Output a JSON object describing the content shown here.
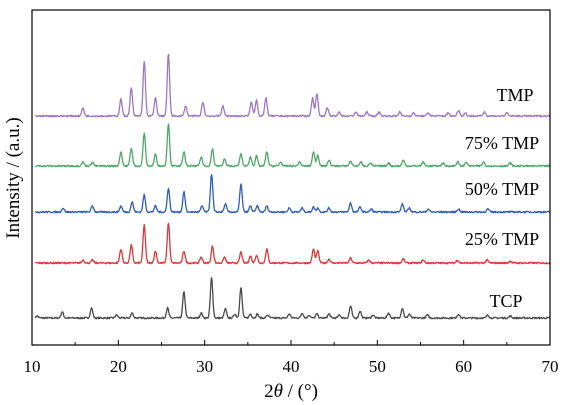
{
  "chart_data": {
    "type": "line",
    "xlabel_prefix": "2",
    "xlabel_var": "θ",
    "xlabel_suffix": " / (°)",
    "ylabel": "Intensity / (a.u.)",
    "xlim": [
      10,
      70
    ],
    "xticks": [
      10,
      20,
      30,
      40,
      50,
      60,
      70
    ],
    "y_ticks_shown": false,
    "grid": false,
    "series": [
      {
        "name": "TCP",
        "color": "#4a4a4a",
        "peaks": [
          [
            10.6,
            2
          ],
          [
            13.5,
            6
          ],
          [
            16.9,
            10
          ],
          [
            19.8,
            3
          ],
          [
            21.6,
            5
          ],
          [
            25.7,
            10
          ],
          [
            27.6,
            26
          ],
          [
            29.6,
            5
          ],
          [
            30.8,
            40
          ],
          [
            32.4,
            9
          ],
          [
            33.5,
            4
          ],
          [
            34.2,
            30
          ],
          [
            35.3,
            4
          ],
          [
            36.1,
            4
          ],
          [
            37.3,
            3
          ],
          [
            39.8,
            4
          ],
          [
            41.3,
            5
          ],
          [
            42.1,
            3
          ],
          [
            43.0,
            4
          ],
          [
            44.4,
            4
          ],
          [
            45.6,
            3
          ],
          [
            46.9,
            12
          ],
          [
            48.0,
            7
          ],
          [
            49.5,
            3
          ],
          [
            51.3,
            5
          ],
          [
            52.9,
            10
          ],
          [
            53.7,
            4
          ],
          [
            55.8,
            3
          ],
          [
            59.4,
            4
          ],
          [
            62.8,
            3
          ],
          [
            65.4,
            2
          ]
        ]
      },
      {
        "name": "25% TMP",
        "color": "#d83838",
        "peaks": [
          [
            15.9,
            3
          ],
          [
            17.0,
            3
          ],
          [
            20.3,
            14
          ],
          [
            21.5,
            18
          ],
          [
            23.0,
            38
          ],
          [
            24.3,
            12
          ],
          [
            25.8,
            40
          ],
          [
            27.6,
            12
          ],
          [
            29.6,
            6
          ],
          [
            30.9,
            17
          ],
          [
            32.3,
            6
          ],
          [
            34.2,
            11
          ],
          [
            35.3,
            7
          ],
          [
            36.0,
            8
          ],
          [
            37.2,
            14
          ],
          [
            42.6,
            14
          ],
          [
            43.1,
            12
          ],
          [
            44.4,
            4
          ],
          [
            46.9,
            5
          ],
          [
            49.0,
            3
          ],
          [
            53.0,
            4
          ],
          [
            55.3,
            3
          ],
          [
            59.3,
            3
          ],
          [
            62.7,
            3
          ],
          [
            65.4,
            2
          ]
        ]
      },
      {
        "name": "50% TMP",
        "color": "#2f5db8",
        "peaks": [
          [
            13.6,
            4
          ],
          [
            17.0,
            6
          ],
          [
            20.3,
            6
          ],
          [
            21.6,
            10
          ],
          [
            23.0,
            17
          ],
          [
            24.3,
            6
          ],
          [
            25.8,
            24
          ],
          [
            27.6,
            20
          ],
          [
            29.7,
            6
          ],
          [
            30.8,
            38
          ],
          [
            32.4,
            8
          ],
          [
            34.2,
            28
          ],
          [
            35.3,
            6
          ],
          [
            36.1,
            6
          ],
          [
            37.2,
            6
          ],
          [
            39.8,
            4
          ],
          [
            41.3,
            4
          ],
          [
            42.6,
            5
          ],
          [
            43.1,
            4
          ],
          [
            44.4,
            4
          ],
          [
            46.9,
            9
          ],
          [
            48.0,
            5
          ],
          [
            49.3,
            3
          ],
          [
            52.9,
            8
          ],
          [
            53.7,
            4
          ],
          [
            55.9,
            3
          ],
          [
            59.4,
            3
          ],
          [
            62.8,
            3
          ]
        ]
      },
      {
        "name": "75% TMP",
        "color": "#4fa66a",
        "peaks": [
          [
            15.9,
            4
          ],
          [
            17.0,
            4
          ],
          [
            20.3,
            14
          ],
          [
            21.5,
            18
          ],
          [
            23.0,
            33
          ],
          [
            24.3,
            12
          ],
          [
            25.8,
            42
          ],
          [
            27.6,
            14
          ],
          [
            29.6,
            9
          ],
          [
            30.9,
            17
          ],
          [
            32.3,
            7
          ],
          [
            34.2,
            12
          ],
          [
            35.3,
            9
          ],
          [
            36.0,
            10
          ],
          [
            37.2,
            14
          ],
          [
            38.8,
            4
          ],
          [
            41.0,
            4
          ],
          [
            42.6,
            14
          ],
          [
            43.1,
            11
          ],
          [
            44.4,
            6
          ],
          [
            46.9,
            5
          ],
          [
            48.1,
            4
          ],
          [
            49.2,
            3
          ],
          [
            51.3,
            3
          ],
          [
            53.0,
            6
          ],
          [
            55.3,
            4
          ],
          [
            57.6,
            3
          ],
          [
            59.3,
            4
          ],
          [
            60.3,
            4
          ],
          [
            62.3,
            4
          ],
          [
            65.4,
            3
          ]
        ]
      },
      {
        "name": "TMP",
        "color": "#9b78c4",
        "peaks": [
          [
            15.9,
            8
          ],
          [
            20.3,
            17
          ],
          [
            21.5,
            28
          ],
          [
            23.0,
            55
          ],
          [
            24.3,
            18
          ],
          [
            25.8,
            62
          ],
          [
            27.8,
            10
          ],
          [
            29.8,
            14
          ],
          [
            32.1,
            10
          ],
          [
            35.4,
            14
          ],
          [
            36.0,
            16
          ],
          [
            37.1,
            18
          ],
          [
            42.5,
            18
          ],
          [
            43.0,
            22
          ],
          [
            44.2,
            8
          ],
          [
            45.6,
            4
          ],
          [
            47.5,
            4
          ],
          [
            48.8,
            4
          ],
          [
            50.2,
            4
          ],
          [
            52.6,
            4
          ],
          [
            54.2,
            3
          ],
          [
            55.9,
            3
          ],
          [
            58.2,
            3
          ],
          [
            59.4,
            6
          ],
          [
            60.2,
            3
          ],
          [
            62.4,
            4
          ],
          [
            65.0,
            3
          ]
        ]
      }
    ]
  }
}
